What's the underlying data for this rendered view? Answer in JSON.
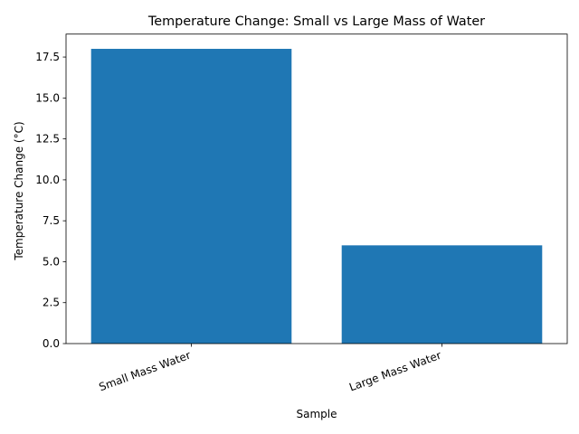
{
  "chart_data": {
    "type": "bar",
    "title": "Temperature Change: Small vs Large Mass of Water",
    "x_label": "Sample",
    "y_label": "Temperature Change (°C)",
    "categories": [
      "Small Mass Water",
      "Large Mass Water"
    ],
    "values": [
      18,
      6
    ],
    "color": "#1f77b4",
    "ylim": [
      0,
      18.9
    ],
    "yticks": [
      {
        "value": 0,
        "label": "0.0"
      },
      2.5,
      {
        "value": 5,
        "label": "5.0"
      },
      7.5,
      {
        "value": 10,
        "label": "10.0"
      },
      12.5,
      {
        "value": 15,
        "label": "15.0"
      },
      17.5
    ],
    "grid": false
  }
}
